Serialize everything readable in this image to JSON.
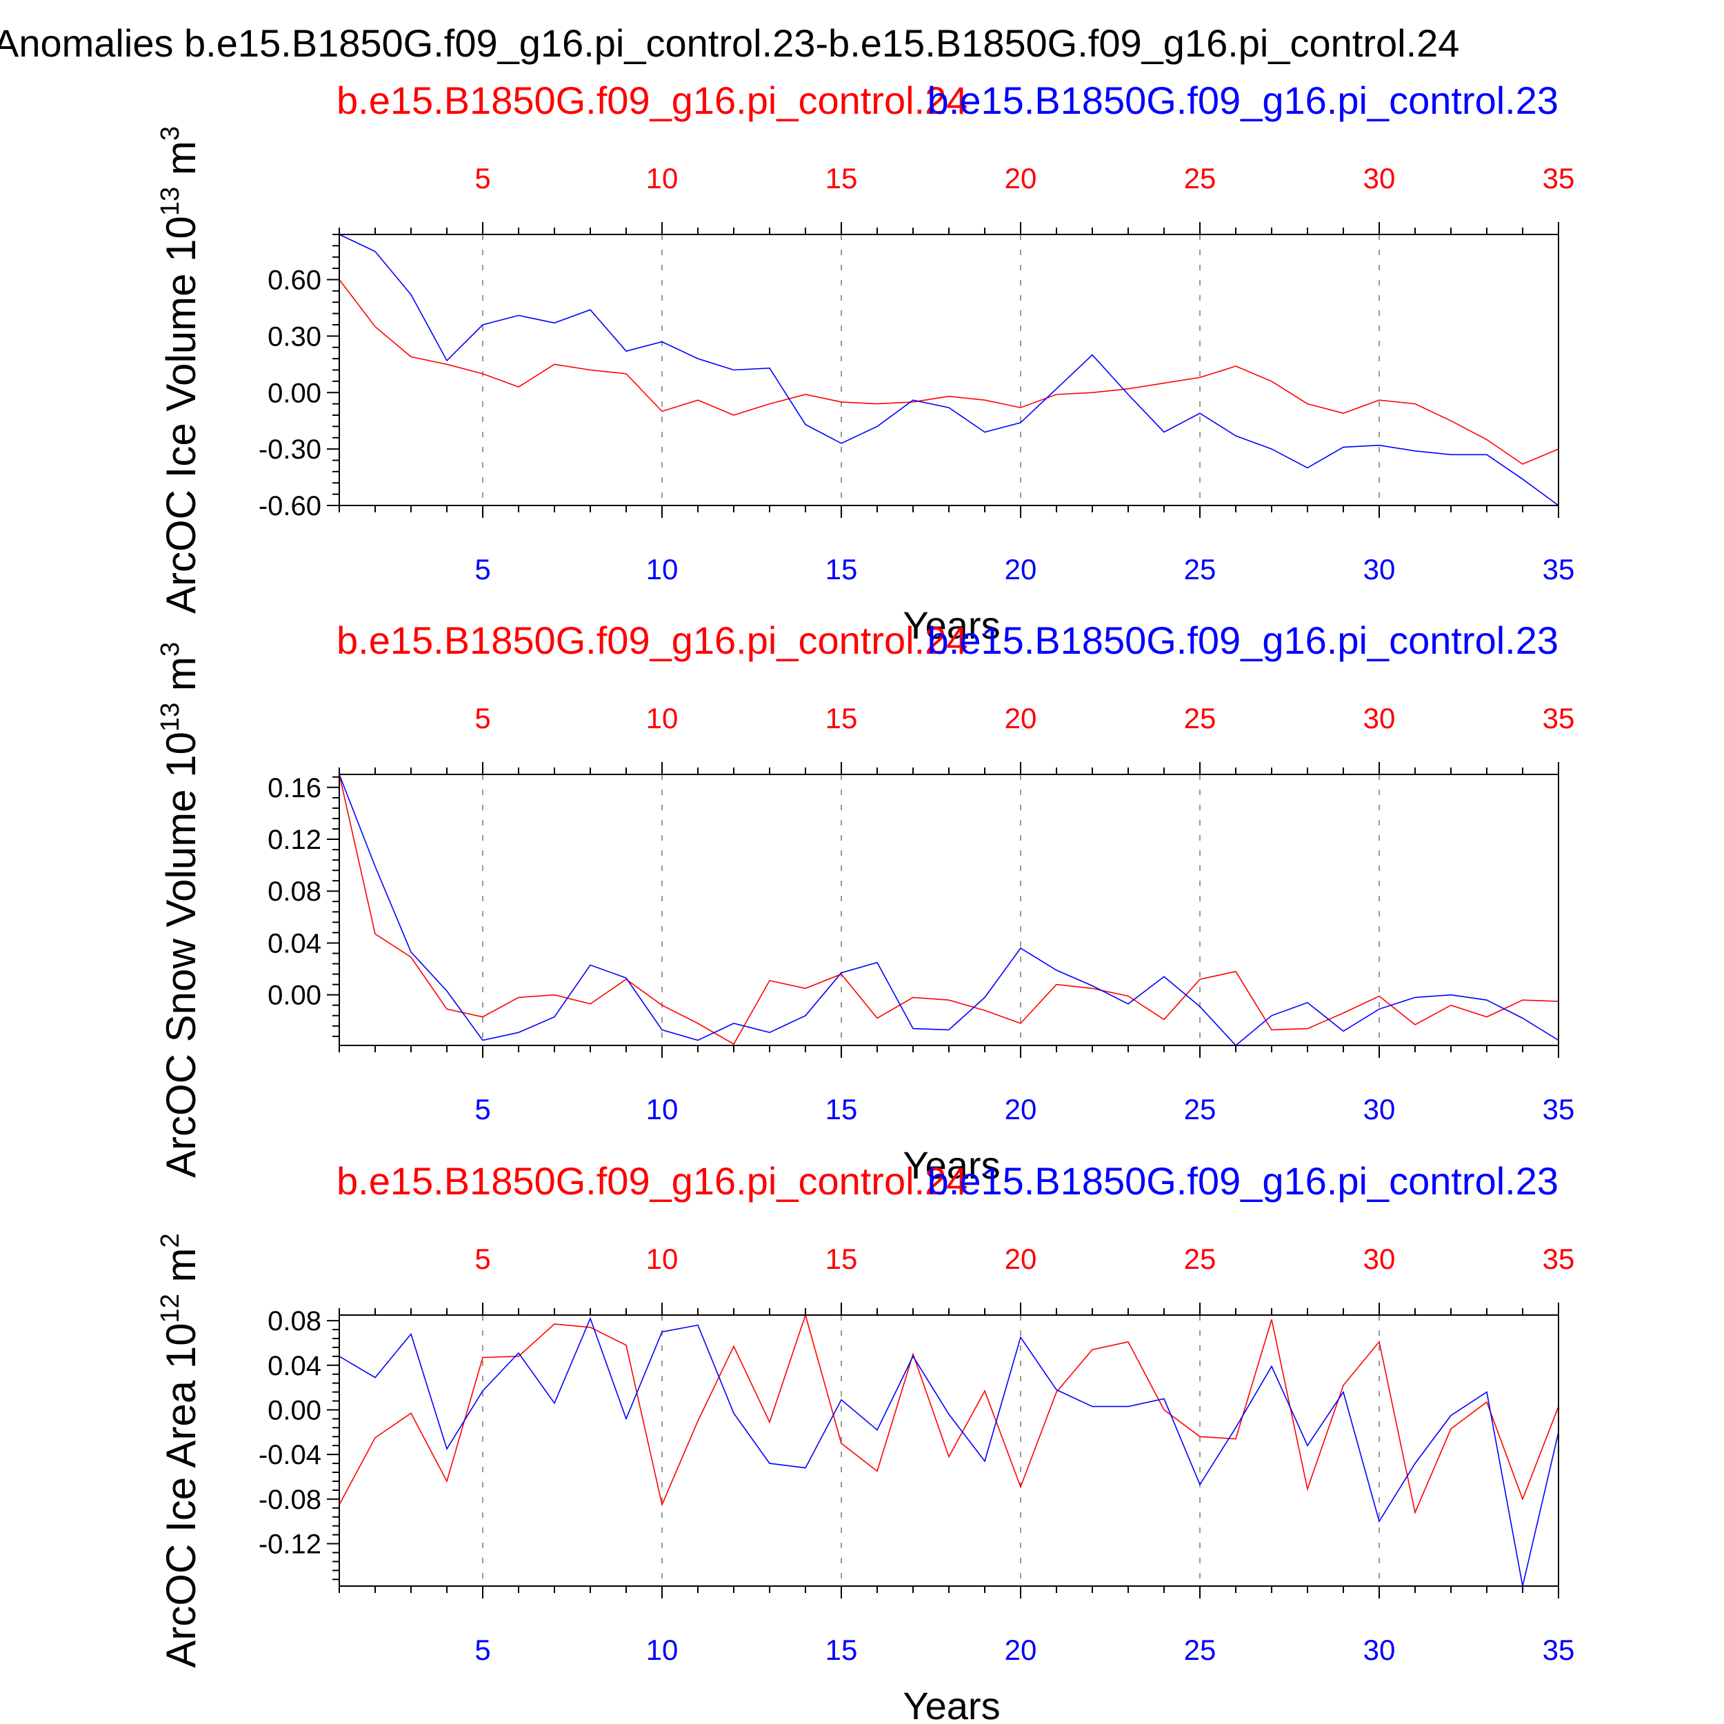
{
  "page": {
    "title": "Anomalies b.e15.B1850G.f09_g16.pi_control.23-b.e15.B1850G.f09_g16.pi_control.24",
    "colors": {
      "red": "#ff0000",
      "blue": "#0000ff",
      "axis": "#000000",
      "grid": "#999999"
    }
  },
  "chart_data": [
    {
      "type": "line",
      "ylabel": "ArcOC Ice Volume 10^13 m^3",
      "xlabel": "Years",
      "xlim": [
        1,
        35
      ],
      "ylim": [
        -0.6,
        0.84
      ],
      "yticks": [
        -0.6,
        -0.3,
        0.0,
        0.3,
        0.6
      ],
      "ytick_labels": [
        "-0.60",
        "-0.30",
        "0.00",
        "0.30",
        "0.60"
      ],
      "xticks": [
        5,
        10,
        15,
        20,
        25,
        30,
        35
      ],
      "x": [
        1,
        2,
        3,
        4,
        5,
        6,
        7,
        8,
        9,
        10,
        11,
        12,
        13,
        14,
        15,
        16,
        17,
        18,
        19,
        20,
        21,
        22,
        23,
        24,
        25,
        26,
        27,
        28,
        29,
        30,
        31,
        32,
        33,
        34,
        35
      ],
      "series": [
        {
          "name": "b.e15.B1850G.f09_g16.pi_control.24",
          "color": "#ff0000",
          "values": [
            0.6,
            0.35,
            0.19,
            0.15,
            0.1,
            0.03,
            0.15,
            0.12,
            0.1,
            -0.1,
            -0.04,
            -0.12,
            -0.06,
            -0.01,
            -0.05,
            -0.06,
            -0.05,
            -0.02,
            -0.04,
            -0.08,
            -0.01,
            0.0,
            0.02,
            0.05,
            0.08,
            0.14,
            0.06,
            -0.06,
            -0.11,
            -0.04,
            -0.06,
            -0.15,
            -0.25,
            -0.38,
            -0.3
          ]
        },
        {
          "name": "b.e15.B1850G.f09_g16.pi_control.23",
          "color": "#0000ff",
          "values": [
            0.84,
            0.75,
            0.52,
            0.17,
            0.36,
            0.41,
            0.37,
            0.44,
            0.22,
            0.27,
            0.18,
            0.12,
            0.13,
            -0.17,
            -0.27,
            -0.18,
            -0.04,
            -0.08,
            -0.21,
            -0.16,
            0.02,
            0.2,
            -0.01,
            -0.21,
            -0.11,
            -0.23,
            -0.3,
            -0.4,
            -0.29,
            -0.28,
            -0.31,
            -0.33,
            -0.33,
            -0.46,
            -0.6
          ]
        }
      ]
    },
    {
      "type": "line",
      "ylabel": "ArcOC Snow Volume 10^13 m^3",
      "xlabel": "Years",
      "xlim": [
        1,
        35
      ],
      "ylim": [
        -0.039,
        0.17
      ],
      "yticks": [
        0.0,
        0.04,
        0.08,
        0.12,
        0.16
      ],
      "ytick_labels": [
        "0.00",
        "0.04",
        "0.08",
        "0.12",
        "0.16"
      ],
      "xticks": [
        5,
        10,
        15,
        20,
        25,
        30,
        35
      ],
      "x": [
        1,
        2,
        3,
        4,
        5,
        6,
        7,
        8,
        9,
        10,
        11,
        12,
        13,
        14,
        15,
        16,
        17,
        18,
        19,
        20,
        21,
        22,
        23,
        24,
        25,
        26,
        27,
        28,
        29,
        30,
        31,
        32,
        33,
        34,
        35
      ],
      "series": [
        {
          "name": "b.e15.B1850G.f09_g16.pi_control.24",
          "color": "#ff0000",
          "values": [
            0.17,
            0.047,
            0.029,
            -0.011,
            -0.017,
            -0.002,
            0.0,
            -0.007,
            0.012,
            -0.008,
            -0.022,
            -0.038,
            0.011,
            0.005,
            0.016,
            -0.018,
            -0.002,
            -0.004,
            -0.012,
            -0.022,
            0.008,
            0.005,
            -0.001,
            -0.019,
            0.012,
            0.018,
            -0.027,
            -0.026,
            -0.014,
            -0.001,
            -0.023,
            -0.008,
            -0.017,
            -0.004,
            -0.005
          ]
        },
        {
          "name": "b.e15.B1850G.f09_g16.pi_control.23",
          "color": "#0000ff",
          "values": [
            0.17,
            0.099,
            0.033,
            0.003,
            -0.035,
            -0.029,
            -0.017,
            0.023,
            0.013,
            -0.027,
            -0.035,
            -0.022,
            -0.029,
            -0.016,
            0.017,
            0.025,
            -0.026,
            -0.027,
            -0.002,
            0.036,
            0.019,
            0.007,
            -0.007,
            0.014,
            -0.009,
            -0.039,
            -0.016,
            -0.006,
            -0.028,
            -0.011,
            -0.002,
            0.0,
            -0.004,
            -0.018,
            -0.035
          ]
        }
      ]
    },
    {
      "type": "line",
      "ylabel": "ArcOC Ice Area 10^12 m^2",
      "xlabel": "Years",
      "xlim": [
        1,
        35
      ],
      "ylim": [
        -0.158,
        0.085
      ],
      "yticks": [
        -0.12,
        -0.08,
        -0.04,
        0.0,
        0.04,
        0.08
      ],
      "ytick_labels": [
        "-0.12",
        "-0.08",
        "-0.04",
        "0.00",
        "0.04",
        "0.08"
      ],
      "xticks": [
        5,
        10,
        15,
        20,
        25,
        30,
        35
      ],
      "x": [
        1,
        2,
        3,
        4,
        5,
        6,
        7,
        8,
        9,
        10,
        11,
        12,
        13,
        14,
        15,
        16,
        17,
        18,
        19,
        20,
        21,
        22,
        23,
        24,
        25,
        26,
        27,
        28,
        29,
        30,
        31,
        32,
        33,
        34,
        35
      ],
      "series": [
        {
          "name": "b.e15.B1850G.f09_g16.pi_control.24",
          "color": "#ff0000",
          "values": [
            -0.085,
            -0.025,
            -0.003,
            -0.064,
            0.047,
            0.048,
            0.077,
            0.074,
            0.058,
            -0.085,
            -0.01,
            0.057,
            -0.011,
            0.085,
            -0.03,
            -0.055,
            0.05,
            -0.042,
            0.017,
            -0.069,
            0.016,
            0.054,
            0.061,
            0.0,
            -0.024,
            -0.026,
            0.081,
            -0.071,
            0.022,
            0.061,
            -0.092,
            -0.017,
            0.007,
            -0.08,
            0.003
          ]
        },
        {
          "name": "b.e15.B1850G.f09_g16.pi_control.23",
          "color": "#0000ff",
          "values": [
            0.048,
            0.029,
            0.068,
            -0.035,
            0.017,
            0.051,
            0.006,
            0.082,
            -0.008,
            0.07,
            0.076,
            -0.003,
            -0.048,
            -0.052,
            0.009,
            -0.018,
            0.048,
            -0.004,
            -0.046,
            0.065,
            0.018,
            0.003,
            0.003,
            0.01,
            -0.067,
            -0.016,
            0.039,
            -0.032,
            0.016,
            -0.1,
            -0.048,
            -0.005,
            0.016,
            -0.158,
            -0.02
          ]
        }
      ]
    }
  ]
}
